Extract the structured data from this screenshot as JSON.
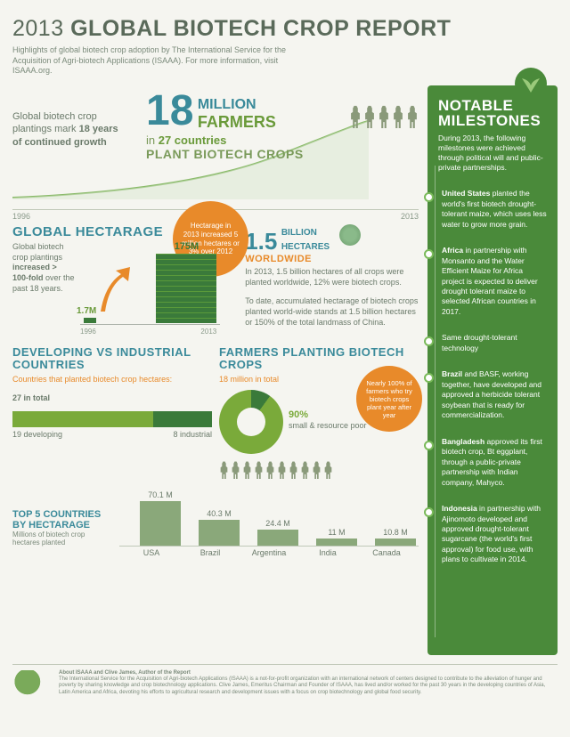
{
  "header": {
    "year": "2013",
    "title": "GLOBAL BIOTECH CROP REPORT",
    "subtitle": "Highlights of global biotech crop adoption by The International Service for the Acquisition of Agri-biotech Applications (ISAAA). For more information, visit ISAAA.org."
  },
  "hero": {
    "growth_text_pre": "Global biotech crop plantings mark ",
    "growth_text_bold": "18 years of continued growth",
    "number": "18",
    "million": "MILLION",
    "farmers": "FARMERS",
    "in_pre": "in ",
    "in_bold": "27 countries",
    "plant": "PLANT BIOTECH CROPS",
    "year_start": "1996",
    "year_end": "2013",
    "farmer_icon_count": 5
  },
  "badge": {
    "text": "Hectarage in 2013 increased 5 million hectares or 3% over 2012"
  },
  "hectarage": {
    "title": "GLOBAL HECTARAGE",
    "text_pre": "Global biotech crop plantings ",
    "text_bold1": "increased > 100-fold",
    "text_post": " over the past 18 years.",
    "val_start": "1.7M",
    "val_end": "175M",
    "year_start": "1996",
    "year_end": "2013",
    "bar_start_h": 6,
    "bar_end_h": 78,
    "color_start": "#6a9a3a",
    "color_end": "#3a7a3a"
  },
  "worldwide": {
    "number": "1.5",
    "billion": "BILLION",
    "hect": "HECTARES",
    "world": "WORLDWIDE",
    "text1": "In 2013, 1.5 billion hectares of all crops were planted worldwide, 12% were biotech crops.",
    "text2": "To date, accumulated hectarage of biotech crops planted world-wide stands at 1.5 billion hectares or 150% of the total landmass of China."
  },
  "dev_ind": {
    "title": "DEVELOPING VS INDUSTRIAL COUNTRIES",
    "sub": "Countries that planted biotech crop hectares:",
    "total": "27 in total",
    "dev_val": 19,
    "ind_val": 8,
    "dev_label": "19 developing",
    "ind_label": "8 industrial",
    "dev_color": "#7aaa3a",
    "ind_color": "#3a7a3a"
  },
  "farmers_planting": {
    "title": "FARMERS PLANTING BIOTECH CROPS",
    "sub": "18 million in total",
    "donut_big_pct": 90,
    "donut_label": "90%",
    "donut_label2": "small & resource poor",
    "badge": "Nearly 100% of farmers who try biotech crops plant year after year",
    "farmer_icon_count": 10
  },
  "top5": {
    "title": "TOP 5 COUNTRIES BY HECTARAGE",
    "sub": "Millions of biotech crop hectares planted",
    "countries": [
      {
        "name": "USA",
        "value": "70.1 M",
        "h": 50
      },
      {
        "name": "Brazil",
        "value": "40.3 M",
        "h": 29
      },
      {
        "name": "Argentina",
        "value": "24.4 M",
        "h": 18
      },
      {
        "name": "India",
        "value": "11 M",
        "h": 8
      },
      {
        "name": "Canada",
        "value": "10.8 M",
        "h": 8
      }
    ],
    "bar_color": "#8aa87a"
  },
  "milestones": {
    "title": "NOTABLE MILESTONES",
    "intro": "During 2013, the following milestones were achieved through political will and public-private partnerships.",
    "items": [
      {
        "bold": "United States",
        "text": " planted the world's first biotech drought-tolerant maize, which uses less water to grow more grain."
      },
      {
        "bold": "Africa",
        "text": " in partnership with Monsanto and the Water Efficient Maize for Africa project is expected to deliver drought tolerant maize to selected African countries in 2017."
      },
      {
        "bold": "",
        "text": "Same drought-tolerant technology"
      },
      {
        "bold": "Brazil",
        "text": " and BASF, working together, have developed and approved a herbicide tolerant soybean that is ready for commercialization."
      },
      {
        "bold": "Bangladesh",
        "text": " approved its first biotech crop, Bt eggplant, through a public-private partnership with Indian company, Mahyco."
      },
      {
        "bold": "Indonesia",
        "text": " in partnership with Ajinomoto developed and approved drought-tolerant sugarcane (the world's first approval) for food use, with plans to cultivate in 2014."
      }
    ]
  },
  "footer": {
    "title": "About ISAAA and Clive James, Author of the Report",
    "text": "The International Service for the Acquisition of Agri-biotech Applications (ISAAA) is a not-for-profit organization with an international network of centers designed to contribute to the alleviation of hunger and poverty by sharing knowledge and crop biotechnology applications. Clive James, Emeritus Chairman and Founder of ISAAA, has lived and/or worked for the past 30 years in the developing countries of Asia, Latin America and Africa, devoting his efforts to agricultural research and development issues with a focus on crop biotechnology and global food security."
  },
  "colors": {
    "teal": "#3a8a9a",
    "green": "#6a9a3a",
    "dark_green": "#3a7a3a",
    "orange": "#e88a2a",
    "bg": "#f5f5f0",
    "ms_bg": "#4a8a3a"
  }
}
